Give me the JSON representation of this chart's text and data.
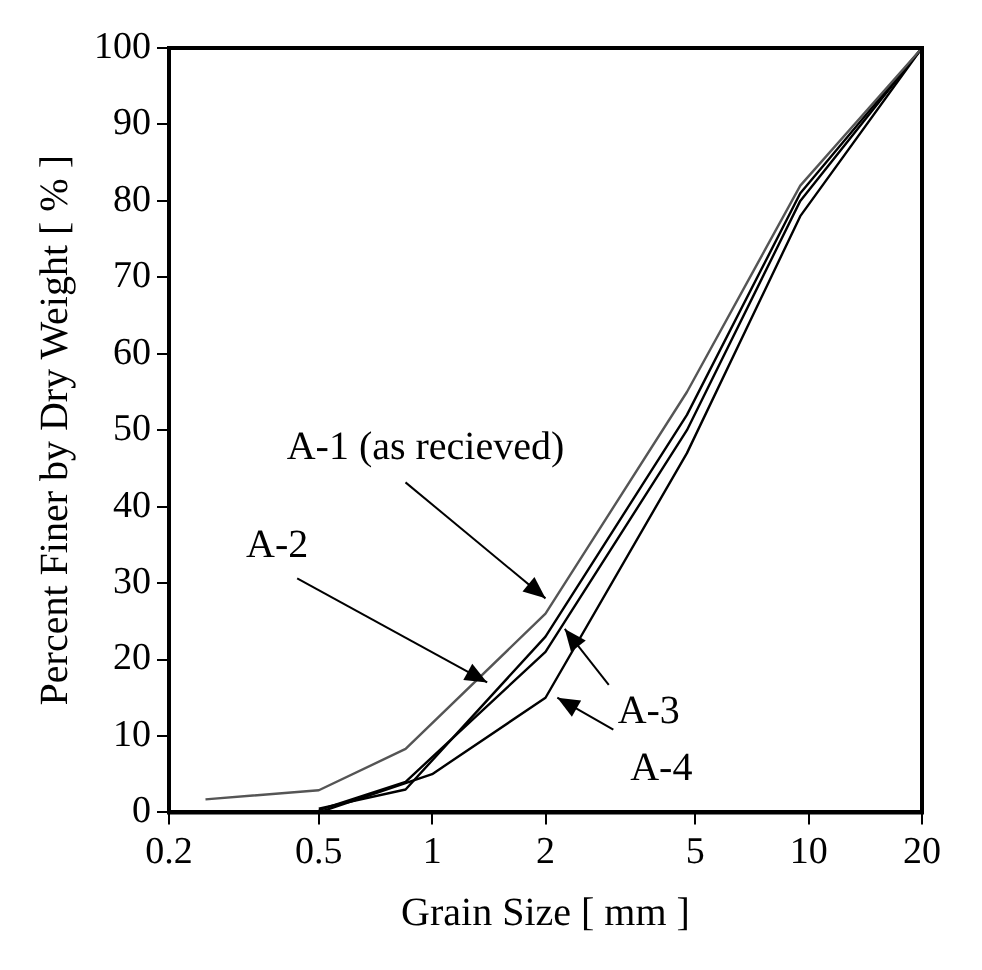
{
  "chart_data": {
    "type": "line",
    "xlabel": "Grain Size [ mm ]",
    "ylabel": "Percent Finer by Dry Weight [ % ]",
    "log": "x",
    "grid": false,
    "legend": false,
    "marker": "none",
    "line_style": "solid",
    "xlim": [
      0.2,
      20
    ],
    "xticks": [
      0.2,
      0.5,
      1,
      2,
      5,
      10,
      20
    ],
    "ylim": [
      0,
      100
    ],
    "yticks": [
      0,
      10,
      20,
      30,
      40,
      50,
      60,
      70,
      80,
      90,
      100
    ],
    "series": [
      {
        "color": "#555555",
        "x": [
          0.25,
          0.5,
          0.85,
          2,
          4.75,
          9.5,
          20
        ],
        "values": [
          1.7,
          2.9,
          8.3,
          26,
          55,
          82,
          100
        ]
      },
      {
        "color": "#000000",
        "x": [
          0.5,
          0.85,
          2,
          4.75,
          9.5,
          20
        ],
        "values": [
          0.5,
          3,
          23,
          52,
          81,
          100
        ]
      },
      {
        "color": "#000000",
        "x": [
          0.5,
          0.85,
          2,
          4.75,
          9.5,
          20
        ],
        "values": [
          0.3,
          4,
          21,
          50,
          80,
          100
        ]
      },
      {
        "color": "#000000",
        "x": [
          0.5,
          1,
          2,
          4.75,
          9.5,
          20
        ],
        "values": [
          0,
          5,
          15,
          47,
          78,
          100
        ]
      }
    ],
    "annotations": [
      {
        "text": "A-1 (as recieved)",
        "x": 2,
        "y": 28
      },
      {
        "text": "A-2",
        "x": 1.4,
        "y": 17
      },
      {
        "text": "A-3",
        "x": 2.25,
        "y": 24
      },
      {
        "text": "A-4",
        "x": 2.15,
        "y": 15
      }
    ]
  }
}
